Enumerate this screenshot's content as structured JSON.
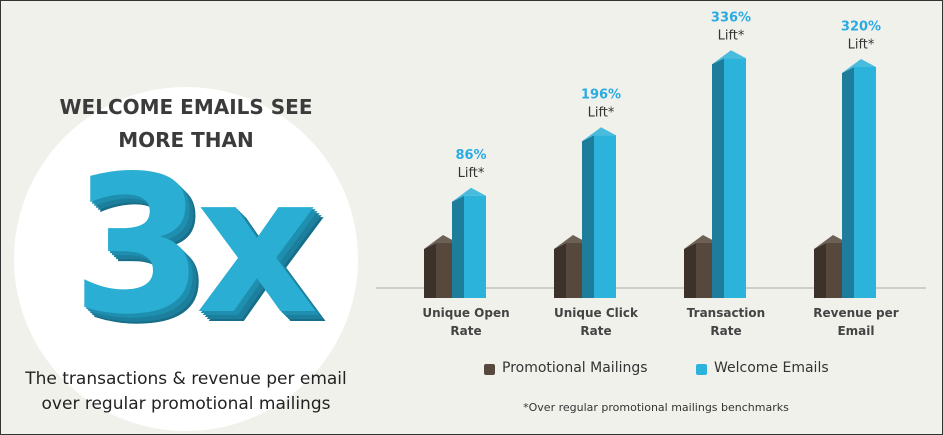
{
  "headline": "WELCOME EMAILS SEE MORE THAN",
  "big_number": "3x",
  "subtitle": "The transactions & revenue per email over regular promotional mailings",
  "chart_data": {
    "type": "bar",
    "categories": [
      "Unique Open Rate",
      "Unique Click Rate",
      "Transaction Rate",
      "Revenue per Email"
    ],
    "series": [
      {
        "name": "Promotional Mailings",
        "color": "#56483c",
        "values": [
          0,
          0,
          0,
          0
        ]
      },
      {
        "name": "Welcome Emails",
        "color": "#2bb3dc",
        "values": [
          86,
          196,
          336,
          320
        ],
        "value_labels": [
          "86%",
          "196%",
          "336%",
          "320%"
        ]
      }
    ],
    "annotation": "Lift*",
    "ylim": [
      -100,
      340
    ],
    "footnote": "*Over regular promotional mailings benchmarks"
  }
}
